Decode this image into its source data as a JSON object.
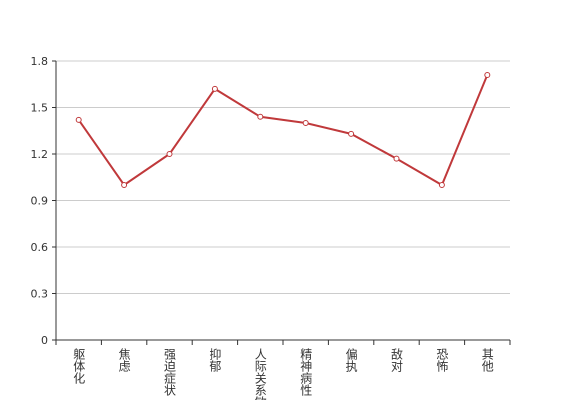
{
  "chart_data": {
    "type": "line",
    "categories": [
      "躯体化",
      "焦虑",
      "强迫症状",
      "抑郁",
      "人际关系敏感",
      "精神病性",
      "偏执",
      "敌对",
      "恐怖",
      "其他"
    ],
    "values": [
      1.42,
      1.0,
      1.2,
      1.62,
      1.44,
      1.4,
      1.33,
      1.17,
      1.0,
      1.71
    ],
    "color": "#c0393b",
    "ylim": [
      0,
      1.8
    ],
    "yticks": [
      0,
      0.3,
      0.6,
      0.9,
      1.2,
      1.5,
      1.8
    ],
    "grid": true
  }
}
